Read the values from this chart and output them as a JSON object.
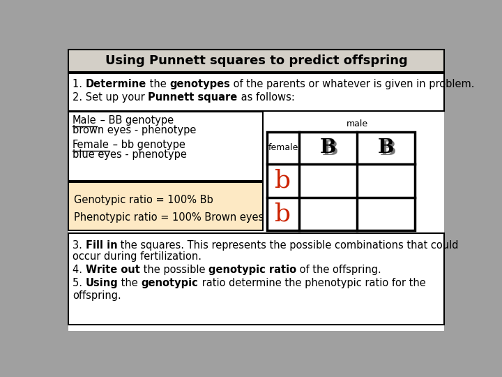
{
  "title": "Using Punnett squares to predict offspring",
  "title_bg": "#d3cfc7",
  "male_text": "male",
  "female_text": "female",
  "genotypic_ratio": "Genotypic ratio = 100% Bb",
  "phenotypic_ratio": "Phenotypic ratio = 100% Brown eyes",
  "ratio_bg": "#fde9c4",
  "allele_color": "#cc2200",
  "outer_bg": "#a0a0a0",
  "white": "#ffffff",
  "black": "#000000"
}
